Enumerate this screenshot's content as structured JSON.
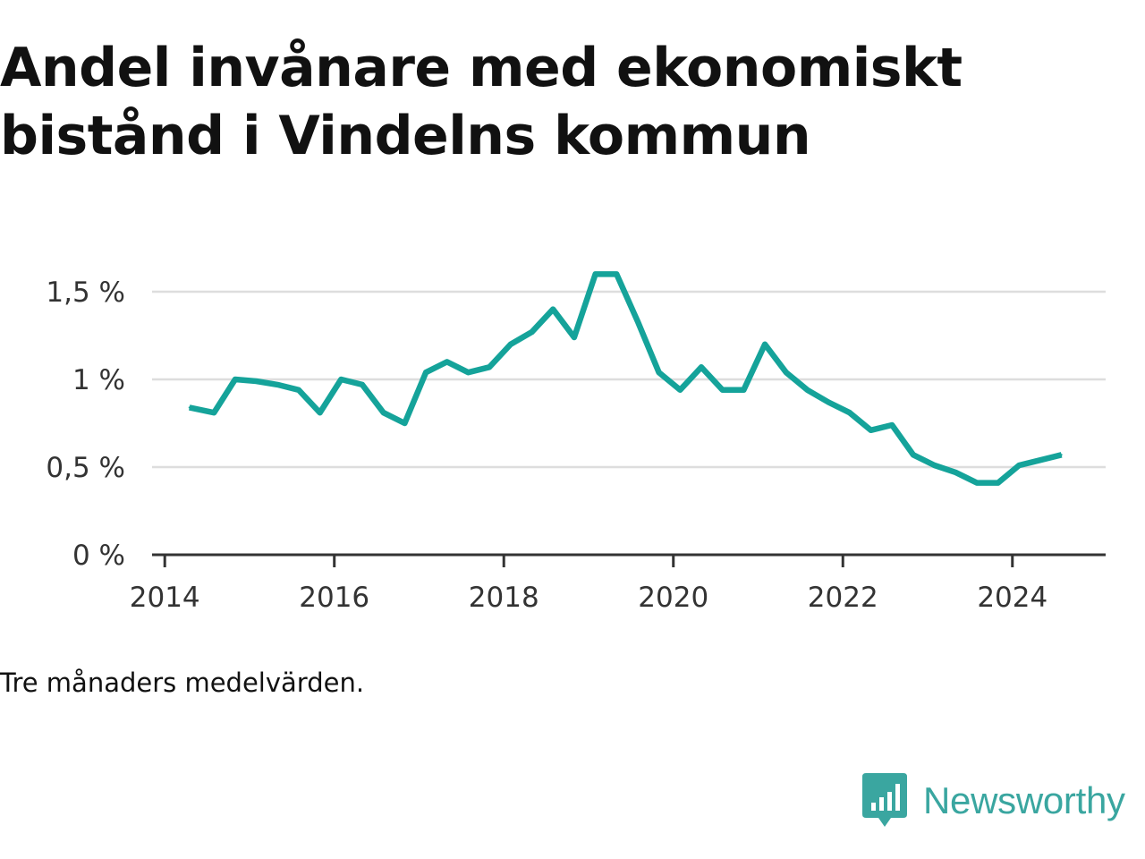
{
  "title": "Andel invånare med ekonomiskt bistånd i Vindelns kommun",
  "note": "Tre månaders medelvärden.",
  "brand": {
    "name": "Newsworthy",
    "icon": "newsworthy-logo-icon",
    "color": "#3aa6a0"
  },
  "chart_data": {
    "type": "line",
    "title": "Andel invånare med ekonomiskt bistånd i Vindelns kommun",
    "xlabel": "",
    "ylabel": "",
    "xlim": [
      2013.85,
      2025.1
    ],
    "ylim": [
      0,
      1.5
    ],
    "grid": true,
    "legend": "none",
    "color": "#15a39a",
    "x_ticks": [
      {
        "value": 2014,
        "label": "2014"
      },
      {
        "value": 2016,
        "label": "2016"
      },
      {
        "value": 2018,
        "label": "2018"
      },
      {
        "value": 2020,
        "label": "2020"
      },
      {
        "value": 2022,
        "label": "2022"
      },
      {
        "value": 2024,
        "label": "2024"
      }
    ],
    "y_ticks": [
      {
        "value": 0,
        "label": "0 %"
      },
      {
        "value": 0.5,
        "label": "0,5 %"
      },
      {
        "value": 1,
        "label": "1 %"
      },
      {
        "value": 1.5,
        "label": "1,5 %"
      }
    ],
    "series": [
      {
        "name": "",
        "x": [
          2014.29,
          2014.58,
          2014.83,
          2015.08,
          2015.33,
          2015.58,
          2015.83,
          2016.08,
          2016.33,
          2016.58,
          2016.83,
          2017.08,
          2017.33,
          2017.58,
          2017.83,
          2018.08,
          2018.33,
          2018.58,
          2018.83,
          2019.08,
          2019.33,
          2019.58,
          2019.83,
          2020.08,
          2020.33,
          2020.58,
          2020.83,
          2021.08,
          2021.33,
          2021.58,
          2021.83,
          2022.08,
          2022.33,
          2022.58,
          2022.83,
          2023.08,
          2023.33,
          2023.58,
          2023.83,
          2024.08,
          2024.33,
          2024.58
        ],
        "values": [
          0.84,
          0.81,
          1.0,
          0.99,
          0.97,
          0.94,
          0.81,
          1.0,
          0.97,
          0.81,
          0.75,
          1.04,
          1.1,
          1.04,
          1.07,
          1.2,
          1.27,
          1.4,
          1.24,
          1.6,
          1.6,
          1.33,
          1.04,
          0.94,
          1.07,
          0.94,
          0.94,
          1.2,
          1.04,
          0.94,
          0.87,
          0.81,
          0.71,
          0.74,
          0.57,
          0.51,
          0.47,
          0.41,
          0.41,
          0.51,
          0.54,
          0.57
        ]
      }
    ]
  }
}
